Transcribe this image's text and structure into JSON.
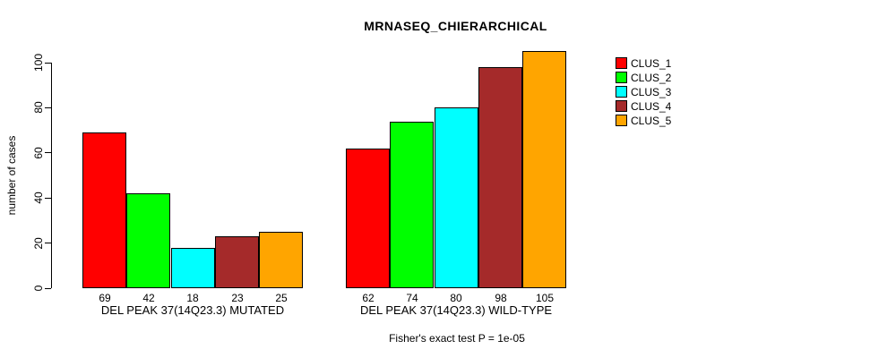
{
  "chart_data": {
    "type": "bar",
    "title": "MRNASEQ_CHIERARCHICAL",
    "ylabel": "number of cases",
    "xlabel": "",
    "ylim": [
      0,
      100
    ],
    "yticks": [
      0,
      20,
      40,
      60,
      80,
      100
    ],
    "grid": false,
    "legend_position": "right",
    "bar_border_color": "#000000",
    "caption": "Fisher's exact test P = 1e-05",
    "series": [
      {
        "name": "CLUS_1",
        "color": "#FF0000"
      },
      {
        "name": "CLUS_2",
        "color": "#00FF00"
      },
      {
        "name": "CLUS_3",
        "color": "#00FFFF"
      },
      {
        "name": "CLUS_4",
        "color": "#A52A2A"
      },
      {
        "name": "CLUS_5",
        "color": "#FFA500"
      }
    ],
    "groups": [
      {
        "label": "DEL PEAK 37(14Q23.3) MUTATED",
        "values": [
          69,
          42,
          18,
          23,
          25
        ]
      },
      {
        "label": "DEL PEAK 37(14Q23.3) WILD-TYPE",
        "values": [
          62,
          74,
          80,
          98,
          105
        ]
      }
    ]
  }
}
